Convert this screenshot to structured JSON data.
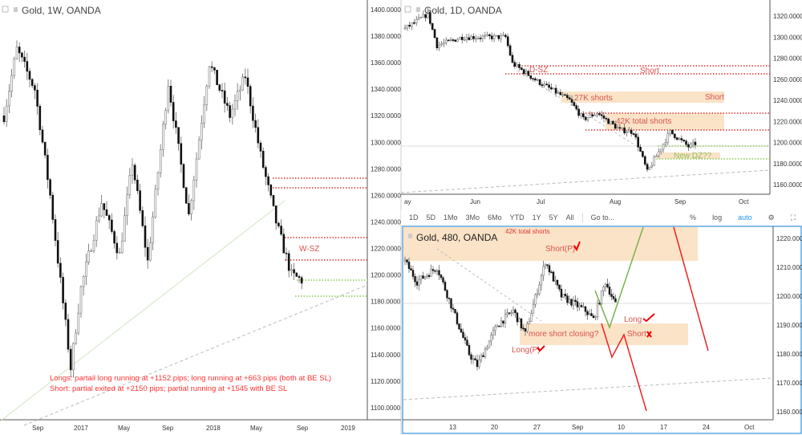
{
  "weekly": {
    "title": "Gold, 1W, OANDA",
    "price_ticks": [
      "1400.0000",
      "1380.0000",
      "1360.0000",
      "1340.0000",
      "1320.0000",
      "1300.0000",
      "1280.0000",
      "1260.0000",
      "1240.0000",
      "1220.0000",
      "1200.0000",
      "1180.0000",
      "1160.0000",
      "1140.0000",
      "1120.0000",
      "1100.0000"
    ],
    "time_ticks": [
      "Sep",
      "2017",
      "May",
      "Sep",
      "2018",
      "May",
      "Sep",
      "2019"
    ],
    "zone_label": "W-SZ",
    "note_line1": "Longs: partail long running at +1152 pips; long running at +663 pips (both at BE SL)",
    "note_line2": "Short: partial exited at +2150 pips; partial running at +1545 with BE SL"
  },
  "daily": {
    "title": "Gold, 1D, OANDA",
    "price_ticks": [
      "1320.0000",
      "1300.0000",
      "1280.0000",
      "1260.0000",
      "1240.0000",
      "1220.0000",
      "1200.0000",
      "1180.0000",
      "1160.0000"
    ],
    "time_ticks": [
      "ay",
      "Jun",
      "Jul",
      "Aug",
      "Sep",
      "Oct"
    ],
    "labels": {
      "dsz": "D-SZ",
      "short1": "Short",
      "k27": "27K shorts",
      "short2": "Short",
      "k42": "42K total shorts",
      "newdz": "New DZ??"
    }
  },
  "toolbar": {
    "ranges": [
      "1D",
      "5D",
      "1Mo",
      "3Mo",
      "6Mo",
      "YTD",
      "1Y",
      "5Y",
      "All"
    ],
    "goto": "Go to...",
    "percent": "%",
    "log": "log",
    "auto": "auto"
  },
  "h4": {
    "title": "Gold, 480, OANDA",
    "price_ticks": [
      "1220.000",
      "1210.000",
      "1200.000",
      "1190.000",
      "1180.000",
      "1170.000",
      "1160.000"
    ],
    "time_ticks": [
      "13",
      "20",
      "27",
      "Sep",
      "10",
      "17",
      "24",
      "Oct"
    ],
    "labels": {
      "top": "42K total shorts",
      "shortp": "Short(P)",
      "long": "Long",
      "short": "Short",
      "closing": "more short closing?",
      "longp": "Long(P)"
    }
  },
  "chart_data": [
    {
      "type": "candlestick",
      "title": "Gold, 1W, OANDA",
      "ylim": [
        1090,
        1405
      ],
      "path_week_price": [
        [
          0,
          1320
        ],
        [
          5,
          1370
        ],
        [
          12,
          1340
        ],
        [
          18,
          1260
        ],
        [
          26,
          1130
        ],
        [
          30,
          1190
        ],
        [
          38,
          1255
        ],
        [
          45,
          1215
        ],
        [
          50,
          1285
        ],
        [
          56,
          1210
        ],
        [
          64,
          1345
        ],
        [
          72,
          1245
        ],
        [
          80,
          1360
        ],
        [
          88,
          1320
        ],
        [
          94,
          1350
        ],
        [
          100,
          1290
        ],
        [
          106,
          1240
        ],
        [
          112,
          1200
        ],
        [
          116,
          1196
        ]
      ],
      "levels": {
        "red": [
          1272,
          1265,
          1228,
          1211
        ],
        "green": [
          1196,
          1184
        ]
      }
    },
    {
      "type": "candlestick",
      "title": "Gold, 1D, OANDA",
      "ylim": [
        1150,
        1330
      ],
      "path_day_price": [
        [
          0,
          1308
        ],
        [
          10,
          1322
        ],
        [
          14,
          1292
        ],
        [
          25,
          1300
        ],
        [
          44,
          1300
        ],
        [
          47,
          1275
        ],
        [
          58,
          1258
        ],
        [
          72,
          1240
        ],
        [
          78,
          1222
        ],
        [
          84,
          1228
        ],
        [
          94,
          1212
        ],
        [
          100,
          1210
        ],
        [
          106,
          1172
        ],
        [
          112,
          1195
        ],
        [
          116,
          1210
        ],
        [
          124,
          1196
        ],
        [
          127,
          1199
        ]
      ],
      "levels": {
        "red": [
          1272,
          1265,
          1228,
          1212
        ],
        "green": [
          1197,
          1184
        ]
      }
    },
    {
      "type": "candlestick",
      "title": "Gold, 480, OANDA",
      "ylim": [
        1155,
        1225
      ],
      "path_bar_price": [
        [
          0,
          1212
        ],
        [
          6,
          1205
        ],
        [
          16,
          1210
        ],
        [
          24,
          1195
        ],
        [
          32,
          1180
        ],
        [
          36,
          1176
        ],
        [
          46,
          1190
        ],
        [
          54,
          1195
        ],
        [
          60,
          1187
        ],
        [
          70,
          1212
        ],
        [
          78,
          1200
        ],
        [
          90,
          1195
        ],
        [
          94,
          1192
        ],
        [
          100,
          1205
        ],
        [
          105,
          1197
        ]
      ]
    }
  ]
}
